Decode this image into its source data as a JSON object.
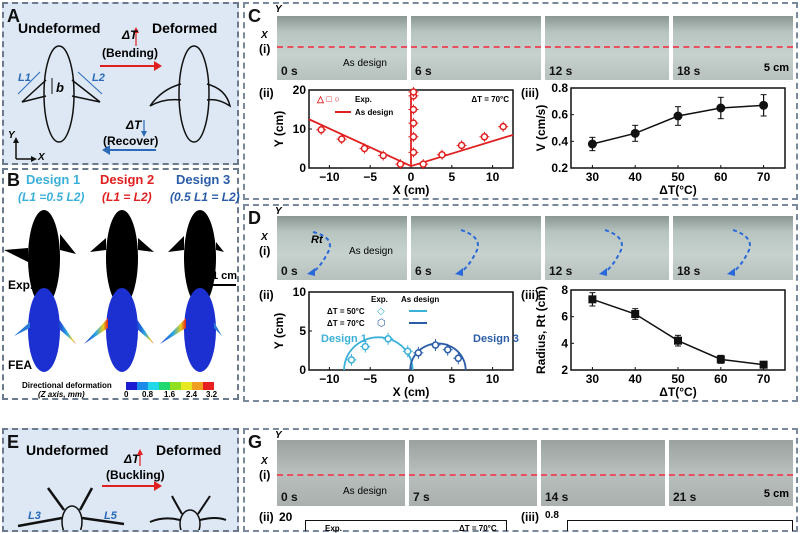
{
  "panelA": {
    "label": "A",
    "undeformed": "Undeformed",
    "deformed": "Deformed",
    "dT": "ΔT",
    "bending": "(Bending)",
    "recover": "(Recover)",
    "L1": "L1",
    "L2": "L2",
    "b": "b",
    "axisY": "Y",
    "axisX": "X"
  },
  "panelB": {
    "label": "B",
    "designs": [
      {
        "name": "Design 1",
        "formula": "(L1 =0.5 L2)",
        "color": "#3bb0d8"
      },
      {
        "name": "Design 2",
        "formula": "(L1 = L2)",
        "color": "#e02020"
      },
      {
        "name": "Design 3",
        "formula": "(0.5 L1 = L2)",
        "color": "#2a5ca8"
      }
    ],
    "exp": "Exp.",
    "fea": "FEA",
    "scale": "1 cm",
    "colorbar_title": "Directional deformation",
    "colorbar_sub": "(Z axis, mm)",
    "colorbar_ticks": [
      "0",
      "0.8",
      "1.6",
      "2.4",
      "3.2"
    ]
  },
  "panelC": {
    "label": "C",
    "axY": "Y",
    "axX": "X",
    "sub1": "(i)",
    "frames": [
      "0 s",
      "6 s",
      "12 s",
      "18 s"
    ],
    "as_design": "As design",
    "scale": "5 cm",
    "sub2": "(ii)",
    "sub3": "(iii)"
  },
  "panelD": {
    "label": "D",
    "axY": "Y",
    "axX": "X",
    "sub1": "(i)",
    "frames": [
      "0 s",
      "6 s",
      "12 s",
      "18 s"
    ],
    "as_design": "As design",
    "rt": "Rt",
    "sub2": "(ii)",
    "sub3": "(iii)"
  },
  "panelE": {
    "label": "E",
    "undeformed": "Undeformed",
    "deformed": "Deformed",
    "dT": "ΔT",
    "buckling": "(Buckling)",
    "L3": "L3",
    "L5": "L5"
  },
  "panelG": {
    "label": "G",
    "axY": "Y",
    "axX": "X",
    "sub1": "(i)",
    "frames": [
      "0 s",
      "7 s",
      "14 s",
      "21 s"
    ],
    "as_design": "As design",
    "scale": "5 cm",
    "sub2": "(ii)",
    "sub3": "(iii)",
    "ii_top": "20",
    "iii_top": "0.8",
    "legend_exp": "Exp.",
    "dT70": "ΔT = 70°C"
  },
  "chart_data": [
    {
      "id": "C-ii",
      "type": "scatter",
      "xlabel": "X (cm)",
      "ylabel": "Y (cm)",
      "xlim": [
        -12.5,
        12.5
      ],
      "ylim": [
        0,
        20
      ],
      "xticks": [
        "-10",
        "-5",
        "0",
        "5",
        "10"
      ],
      "yticks": [
        "0",
        "10",
        "20"
      ],
      "annotation": "ΔT = 70°C",
      "legend": [
        "Exp.",
        "As design"
      ],
      "series": [
        {
          "name": "Exp. left",
          "x": [
            -11,
            -8.5,
            -5.7,
            -3.4,
            -1.3
          ],
          "y": [
            9.8,
            7.4,
            5.0,
            3.2,
            1.0
          ]
        },
        {
          "name": "Exp. straight",
          "x": [
            0.3,
            0.3,
            0.3,
            0.3,
            0.3,
            0.3
          ],
          "y": [
            4,
            8,
            11.5,
            15,
            18.5,
            19.5
          ]
        },
        {
          "name": "Exp. right",
          "x": [
            1.5,
            3.8,
            6.2,
            9,
            11.3
          ],
          "y": [
            1.0,
            3.4,
            5.8,
            8.0,
            10.6
          ]
        },
        {
          "name": "As design",
          "x": [
            -12.5,
            0,
            12.5
          ],
          "y": [
            12.5,
            0.5,
            8.5
          ]
        }
      ]
    },
    {
      "id": "C-iii",
      "type": "line",
      "xlabel": "ΔT(°C)",
      "ylabel": "V (cm/s)",
      "xlim": [
        25,
        75
      ],
      "ylim": [
        0.2,
        0.8
      ],
      "xticks": [
        "30",
        "40",
        "50",
        "60",
        "70"
      ],
      "yticks": [
        "0.2",
        "0.4",
        "0.6",
        "0.8"
      ],
      "series": [
        {
          "name": "V",
          "x": [
            30,
            40,
            50,
            60,
            70
          ],
          "y": [
            0.38,
            0.46,
            0.59,
            0.65,
            0.67
          ],
          "err": [
            0.05,
            0.06,
            0.07,
            0.08,
            0.08
          ]
        }
      ]
    },
    {
      "id": "D-ii",
      "type": "scatter",
      "xlabel": "X (cm)",
      "ylabel": "Y (cm)",
      "xlim": [
        -12.5,
        12.5
      ],
      "ylim": [
        0,
        10
      ],
      "xticks": [
        "-10",
        "-5",
        "0",
        "5",
        "10"
      ],
      "yticks": [
        "0",
        "5",
        "10"
      ],
      "legend_head": [
        "Exp.",
        "As design"
      ],
      "legend": [
        "ΔT = 50°C",
        "ΔT = 70°C"
      ],
      "annotations": [
        "Design 1",
        "Design 3"
      ],
      "series": [
        {
          "name": "Design 1 Exp.",
          "x": [
            -7.3,
            -5.6,
            -2.8,
            -0.4
          ],
          "y": [
            1.3,
            3.0,
            4.0,
            2.4
          ]
        },
        {
          "name": "Design 3 Exp.",
          "x": [
            0.9,
            3.0,
            4.5,
            5.8
          ],
          "y": [
            2.2,
            3.2,
            2.6,
            1.5
          ]
        },
        {
          "name": "Design 1 design",
          "center": -4,
          "radius": 4.2
        },
        {
          "name": "Design 3 design",
          "center": 3.3,
          "radius": 3.4
        }
      ]
    },
    {
      "id": "D-iii",
      "type": "line",
      "xlabel": "ΔT(°C)",
      "ylabel": "Radius, Rt (cm)",
      "xlim": [
        25,
        75
      ],
      "ylim": [
        2,
        8
      ],
      "xticks": [
        "30",
        "40",
        "50",
        "60",
        "70"
      ],
      "yticks": [
        "2",
        "4",
        "6",
        "8"
      ],
      "series": [
        {
          "name": "Rt",
          "x": [
            30,
            40,
            50,
            60,
            70
          ],
          "y": [
            7.3,
            6.2,
            4.2,
            2.8,
            2.4
          ],
          "err": [
            0.5,
            0.4,
            0.4,
            0.3,
            0.2
          ]
        }
      ]
    }
  ]
}
